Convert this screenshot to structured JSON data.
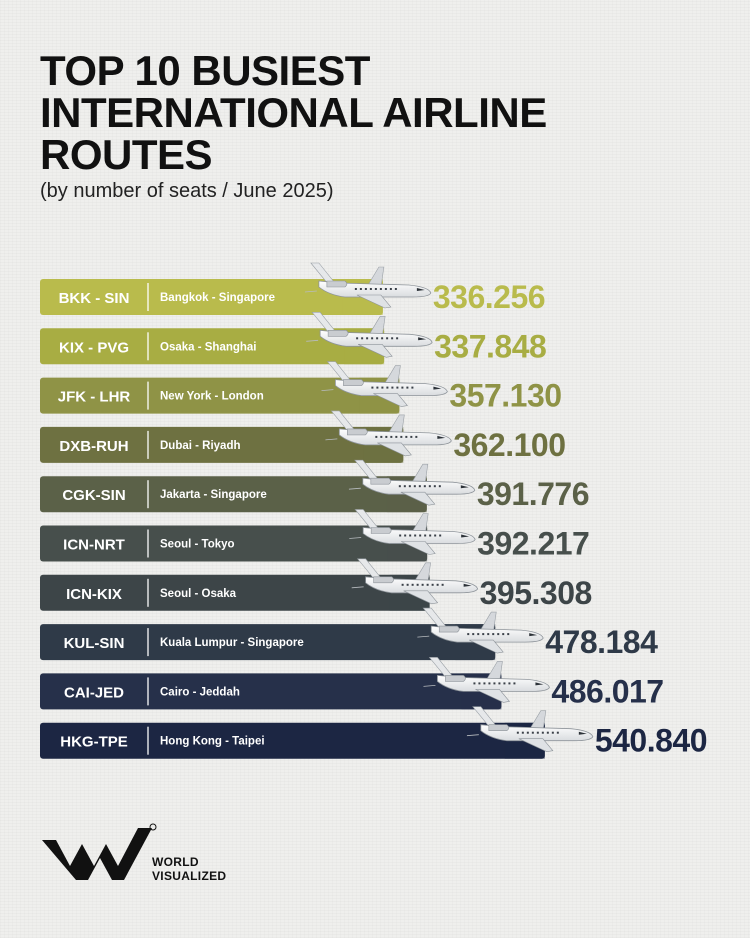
{
  "header": {
    "title_lines": [
      "TOP 10 BUSIEST",
      "INTERNATIONAL AIRLINE",
      "ROUTES"
    ],
    "subtitle": "(by number of seats / June 2025)"
  },
  "brand": {
    "line1": "WORLD",
    "line2": "VISUALIZED",
    "logo_icon": "wv-logo-icon"
  },
  "chart_data": {
    "type": "bar",
    "title": "TOP 10 BUSIEST INTERNATIONAL AIRLINE ROUTES",
    "subtitle": "(by number of seats / June 2025)",
    "orientation": "horizontal",
    "xlim": [
      320000,
      560000
    ],
    "categories": [
      "BKK - SIN",
      "KIX - PVG",
      "JFK - LHR",
      "DXB-RUH",
      "CGK-SIN",
      "ICN-NRT",
      "ICN-KIX",
      "KUL-SIN",
      "CAI-JED",
      "HKG-TPE"
    ],
    "route_names": [
      "Bangkok - Singapore",
      "Osaka - Shanghai",
      "New York - London",
      "Dubai - Riyadh",
      "Jakarta - Singapore",
      "Seoul - Tokyo",
      "Seoul - Osaka",
      "Kuala Lumpur - Singapore",
      "Cairo - Jeddah",
      "Hong Kong - Taipei"
    ],
    "values": [
      336256,
      337848,
      357130,
      362100,
      391776,
      392217,
      395308,
      478184,
      486017,
      540840
    ],
    "value_labels": [
      "336.256",
      "337.848",
      "357.130",
      "362.100",
      "391.776",
      "392.217",
      "395.308",
      "478.184",
      "486.017",
      "540.840"
    ],
    "colors": [
      "#b9bb4c",
      "#a8ad43",
      "#8f9346",
      "#6e7141",
      "#5b6148",
      "#474f4c",
      "#3d4548",
      "#2f3a48",
      "#26304a",
      "#1c2643"
    ],
    "mark_icon": "airplane-icon"
  }
}
